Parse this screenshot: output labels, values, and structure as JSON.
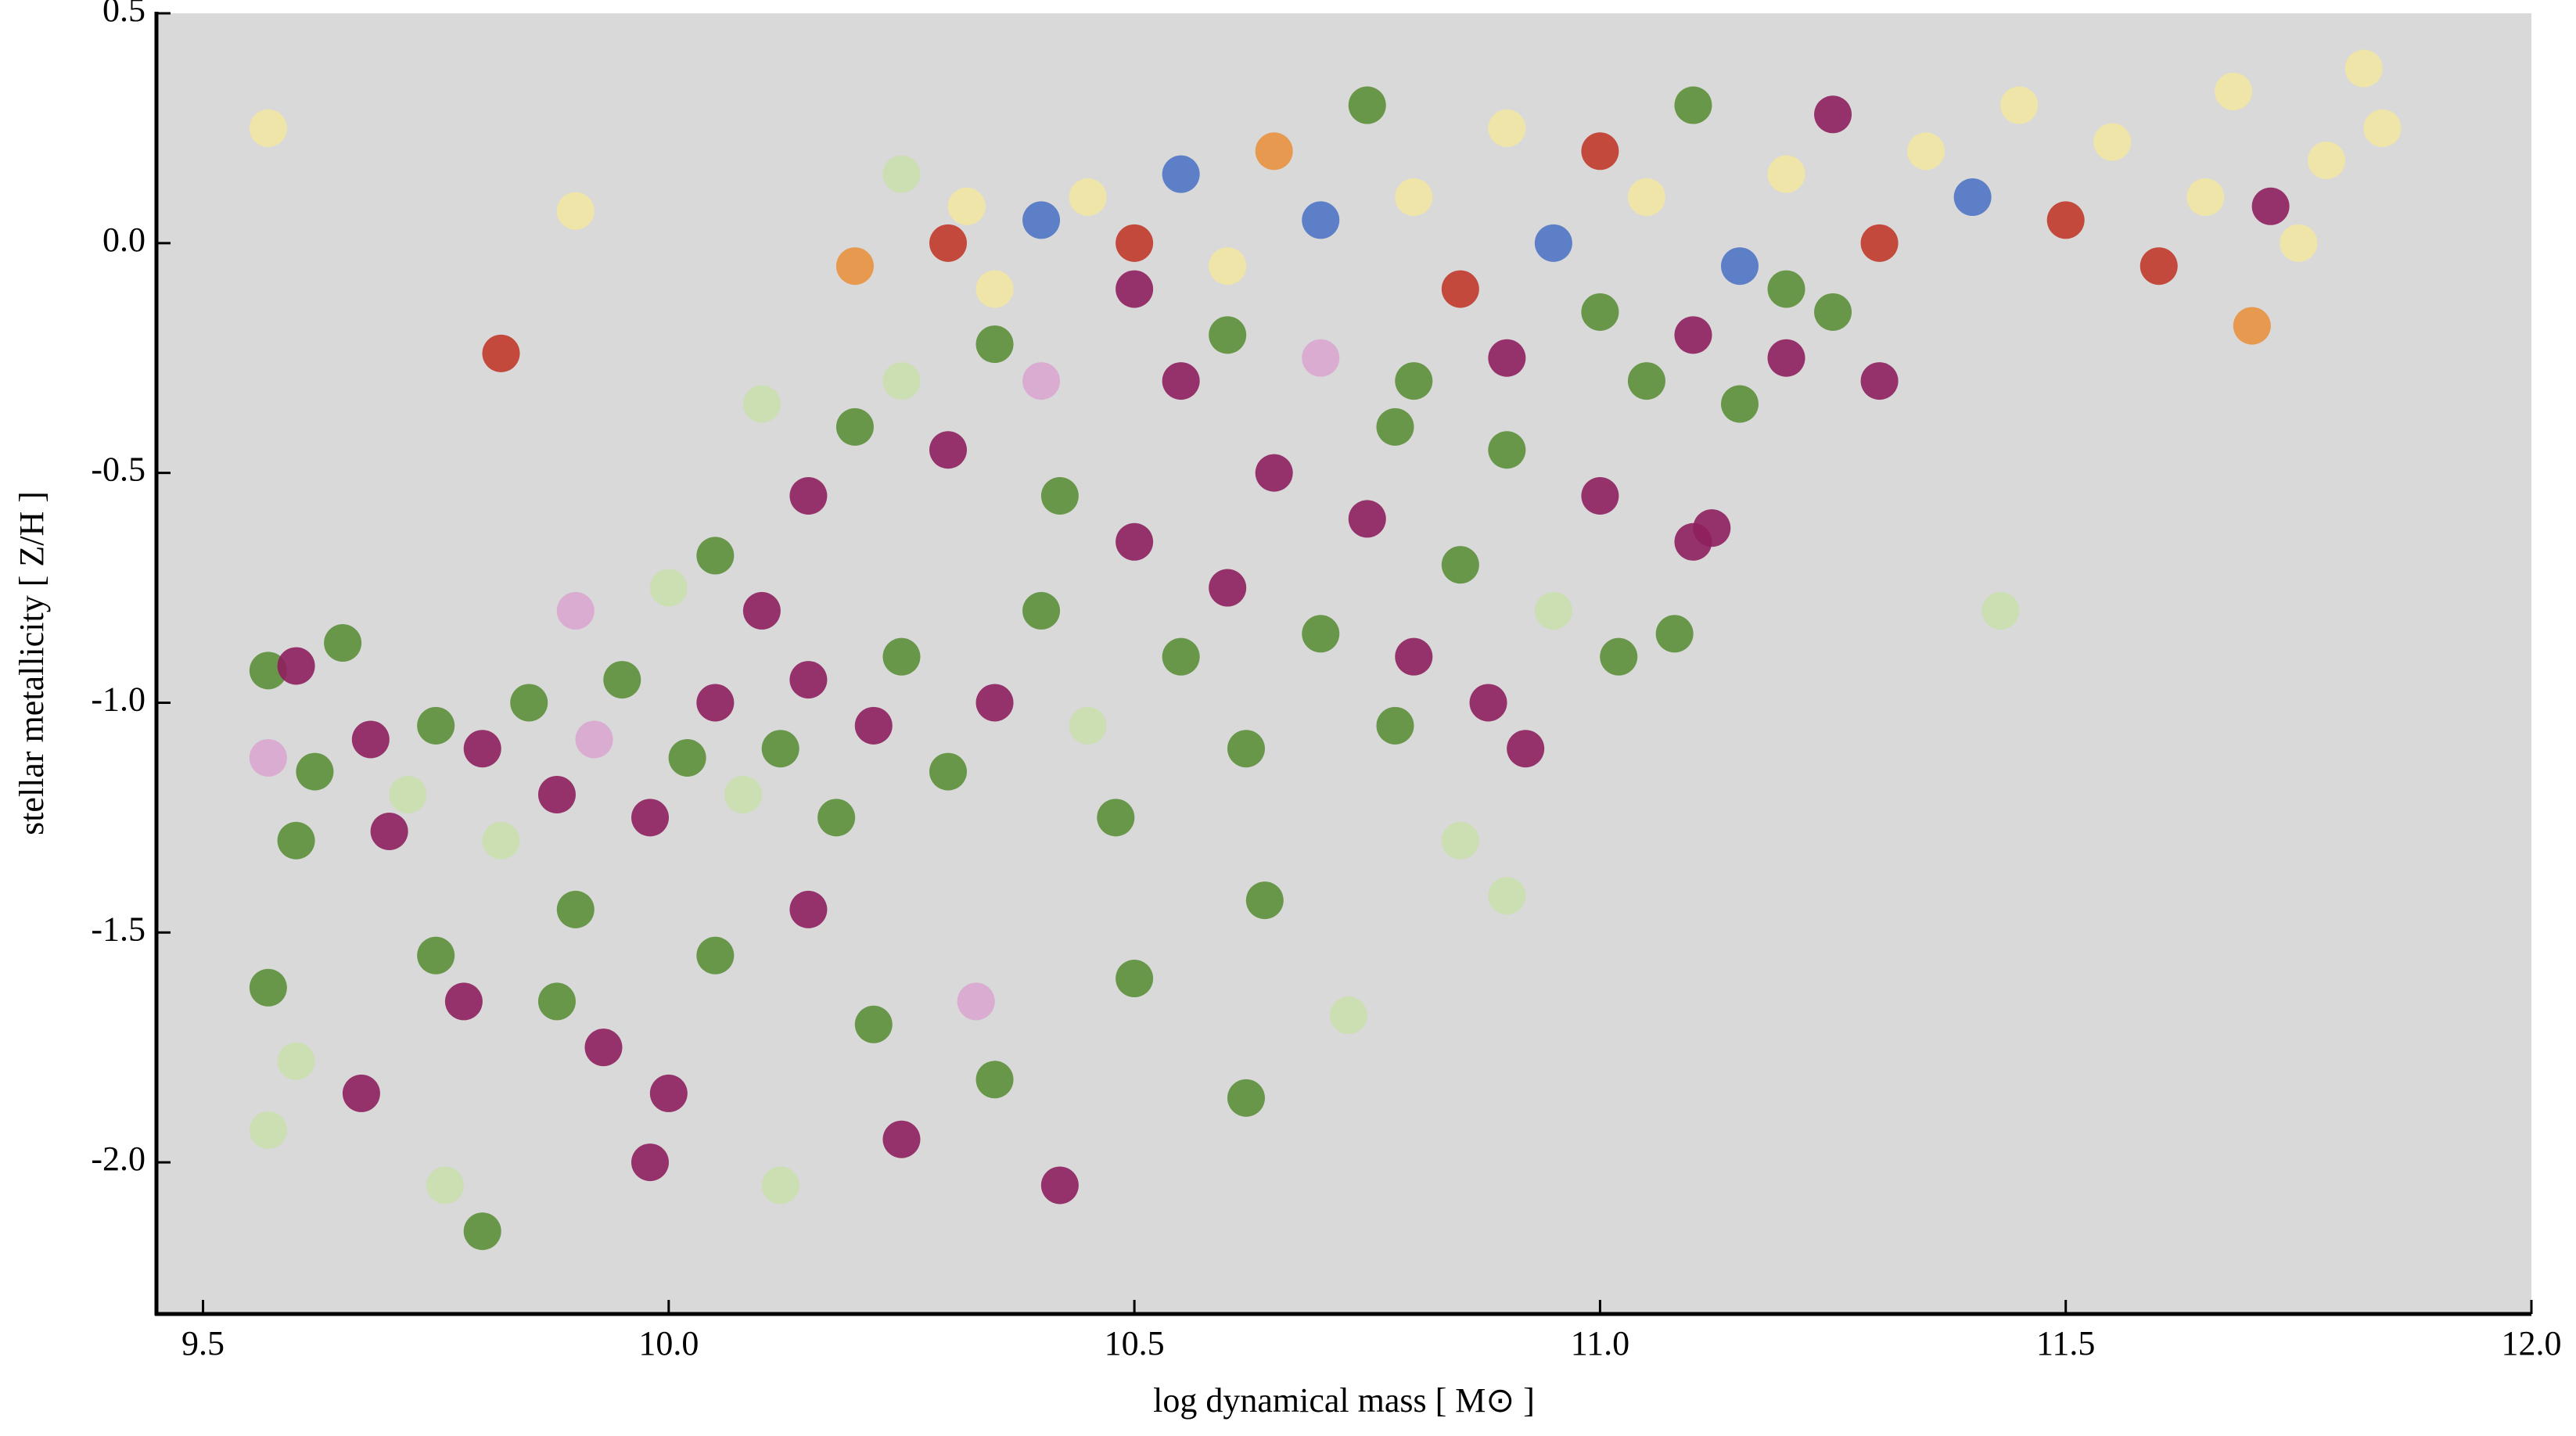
{
  "chart_data": {
    "type": "scatter",
    "x_label": "log dynamical mass [ M⊙ ]",
    "y_label": "stellar metallicity [ Z/H ]",
    "xlim": [
      9.45,
      12.0
    ],
    "ylim": [
      -2.33,
      0.5
    ],
    "xticks": [
      9.5,
      {
        "value": 10,
        "label": "10.0"
      },
      10.5,
      {
        "value": 11,
        "label": "11.0"
      },
      11.5,
      {
        "value": 12,
        "label": "12.0"
      }
    ],
    "yticks": [
      0.5,
      {
        "value": 0,
        "label": "0.0"
      },
      -0.5,
      {
        "value": -1,
        "label": "-1.0"
      },
      -1.5,
      {
        "value": -2,
        "label": "-2.0"
      }
    ],
    "grid": false,
    "x": [
      9.57,
      9.6,
      9.65,
      9.57,
      9.62,
      9.68,
      9.72,
      9.75,
      9.8,
      9.85,
      9.88,
      9.92,
      9.95,
      9.98,
      10.02,
      10.05,
      10.08,
      10.12,
      10.15,
      10.18,
      10.22,
      10.25,
      9.6,
      9.7,
      9.82,
      9.9,
      10.0,
      10.05,
      10.1,
      9.57,
      9.6,
      9.67,
      9.75,
      9.78,
      9.8,
      9.76,
      9.88,
      9.93,
      9.98,
      10.05,
      10.0,
      10.12,
      10.22,
      10.25,
      10.33,
      10.35,
      10.42,
      10.5,
      10.62,
      10.64,
      10.73,
      10.9,
      9.57,
      9.9,
      10.15,
      10.3,
      10.35,
      10.4,
      10.45,
      10.48,
      10.5,
      10.55,
      10.6,
      10.62,
      10.65,
      10.7,
      10.75,
      10.78,
      10.8,
      10.85,
      10.88,
      10.9,
      10.95,
      11.0,
      11.05,
      11.1,
      11.15,
      11.2,
      11.25,
      11.3,
      10.42,
      10.55,
      10.6,
      10.7,
      10.3,
      10.25,
      10.35,
      10.5,
      10.4,
      10.2,
      10.15,
      10.1,
      11.02,
      10.92,
      11.08,
      11.12,
      11.43,
      10.78,
      10.85,
      10.45,
      10.5,
      10.55,
      10.6,
      10.65,
      10.7,
      10.75,
      10.8,
      10.85,
      10.9,
      10.95,
      11.0,
      11.05,
      11.1,
      11.15,
      11.2,
      11.25,
      11.3,
      11.35,
      11.4,
      11.45,
      11.5,
      11.55,
      11.6,
      11.65,
      11.7,
      11.75,
      11.78,
      11.84,
      11.82,
      11.72,
      10.3,
      10.35,
      10.4,
      10.2,
      10.25,
      9.82,
      9.57,
      9.9,
      10.32,
      11.0,
      11.1,
      11.2,
      10.9,
      10.8,
      11.68
    ],
    "y": [
      -0.93,
      -0.92,
      -0.87,
      -1.12,
      -1.15,
      -1.08,
      -1.2,
      -1.05,
      -1.1,
      -1.0,
      -1.2,
      -1.08,
      -0.95,
      -1.25,
      -1.12,
      -1.0,
      -1.2,
      -1.1,
      -0.95,
      -1.25,
      -1.05,
      -0.9,
      -1.3,
      -1.28,
      -1.3,
      -0.8,
      -0.75,
      -0.68,
      -0.8,
      -1.62,
      -1.78,
      -1.85,
      -1.55,
      -1.65,
      -2.15,
      -2.05,
      -1.65,
      -1.75,
      -2.0,
      -1.55,
      -1.85,
      -2.05,
      -1.7,
      -1.95,
      -1.65,
      -1.82,
      -2.05,
      -1.6,
      -1.86,
      -1.43,
      -1.68,
      -1.42,
      -1.93,
      -1.45,
      -1.45,
      -1.15,
      -1.0,
      -0.8,
      -1.05,
      -1.25,
      -0.65,
      -0.9,
      -0.75,
      -1.1,
      -0.5,
      -0.85,
      -0.6,
      -0.4,
      -0.9,
      -0.7,
      -1.0,
      -0.45,
      -0.8,
      -0.55,
      -0.3,
      -0.65,
      -0.35,
      -0.25,
      -0.15,
      -0.3,
      -0.55,
      -0.3,
      -0.2,
      -0.25,
      -0.45,
      -0.3,
      -0.22,
      -0.1,
      -0.3,
      -0.4,
      -0.55,
      -0.35,
      -0.9,
      -1.1,
      -0.85,
      -0.62,
      -0.8,
      -1.05,
      -1.3,
      0.1,
      0.0,
      0.15,
      -0.05,
      0.2,
      0.05,
      0.3,
      0.1,
      -0.1,
      0.25,
      0.0,
      0.2,
      0.1,
      0.3,
      -0.05,
      0.15,
      0.28,
      0.0,
      0.2,
      0.1,
      0.3,
      0.05,
      0.22,
      -0.05,
      0.1,
      -0.18,
      0.0,
      0.18,
      0.25,
      0.38,
      0.08,
      0.0,
      -0.1,
      0.05,
      -0.05,
      0.15,
      -0.24,
      0.25,
      0.07,
      0.08,
      -0.15,
      -0.2,
      -0.1,
      -0.25,
      -0.3,
      0.33
    ],
    "colors": [
      "#5b8f3a",
      "#8e1f5e",
      "#5b8f3a",
      "#d9a6cf",
      "#5b8f3a",
      "#8e1f5e",
      "#c9dfae",
      "#5b8f3a",
      "#8e1f5e",
      "#5b8f3a",
      "#8e1f5e",
      "#d9a6cf",
      "#5b8f3a",
      "#8e1f5e",
      "#5b8f3a",
      "#8e1f5e",
      "#c9dfae",
      "#5b8f3a",
      "#8e1f5e",
      "#5b8f3a",
      "#8e1f5e",
      "#5b8f3a",
      "#5b8f3a",
      "#8e1f5e",
      "#c9dfae",
      "#d9a6cf",
      "#c9dfae",
      "#5b8f3a",
      "#8e1f5e",
      "#5b8f3a",
      "#c9dfae",
      "#8e1f5e",
      "#5b8f3a",
      "#8e1f5e",
      "#5b8f3a",
      "#c9dfae",
      "#5b8f3a",
      "#8e1f5e",
      "#8e1f5e",
      "#5b8f3a",
      "#8e1f5e",
      "#c9dfae",
      "#5b8f3a",
      "#8e1f5e",
      "#d9a6cf",
      "#5b8f3a",
      "#8e1f5e",
      "#5b8f3a",
      "#5b8f3a",
      "#5b8f3a",
      "#c9dfae",
      "#c9dfae",
      "#c9dfae",
      "#5b8f3a",
      "#8e1f5e",
      "#5b8f3a",
      "#8e1f5e",
      "#5b8f3a",
      "#c9dfae",
      "#5b8f3a",
      "#8e1f5e",
      "#5b8f3a",
      "#8e1f5e",
      "#5b8f3a",
      "#8e1f5e",
      "#5b8f3a",
      "#8e1f5e",
      "#5b8f3a",
      "#8e1f5e",
      "#5b8f3a",
      "#8e1f5e",
      "#5b8f3a",
      "#c9dfae",
      "#8e1f5e",
      "#5b8f3a",
      "#8e1f5e",
      "#5b8f3a",
      "#8e1f5e",
      "#5b8f3a",
      "#8e1f5e",
      "#5b8f3a",
      "#8e1f5e",
      "#5b8f3a",
      "#d9a6cf",
      "#8e1f5e",
      "#c9dfae",
      "#5b8f3a",
      "#8e1f5e",
      "#d9a6cf",
      "#5b8f3a",
      "#8e1f5e",
      "#c9dfae",
      "#5b8f3a",
      "#8e1f5e",
      "#5b8f3a",
      "#8e1f5e",
      "#c9dfae",
      "#5b8f3a",
      "#c9dfae",
      "#f2e6a2",
      "#c0392b",
      "#4f74c4",
      "#f2e6a2",
      "#e8913f",
      "#4f74c4",
      "#5b8f3a",
      "#f2e6a2",
      "#c0392b",
      "#f2e6a2",
      "#4f74c4",
      "#c0392b",
      "#f2e6a2",
      "#5b8f3a",
      "#4f74c4",
      "#f2e6a2",
      "#8e1f5e",
      "#c0392b",
      "#f2e6a2",
      "#4f74c4",
      "#f2e6a2",
      "#c0392b",
      "#f2e6a2",
      "#c0392b",
      "#f2e6a2",
      "#e8913f",
      "#f2e6a2",
      "#f2e6a2",
      "#f2e6a2",
      "#f2e6a2",
      "#8e1f5e",
      "#c0392b",
      "#f2e6a2",
      "#4f74c4",
      "#e8913f",
      "#c9dfae",
      "#c0392b",
      "#f2e6a2",
      "#f2e6a2",
      "#f2e6a2",
      "#5b8f3a",
      "#8e1f5e",
      "#5b8f3a",
      "#8e1f5e",
      "#5b8f3a",
      "#f2e6a2"
    ]
  }
}
